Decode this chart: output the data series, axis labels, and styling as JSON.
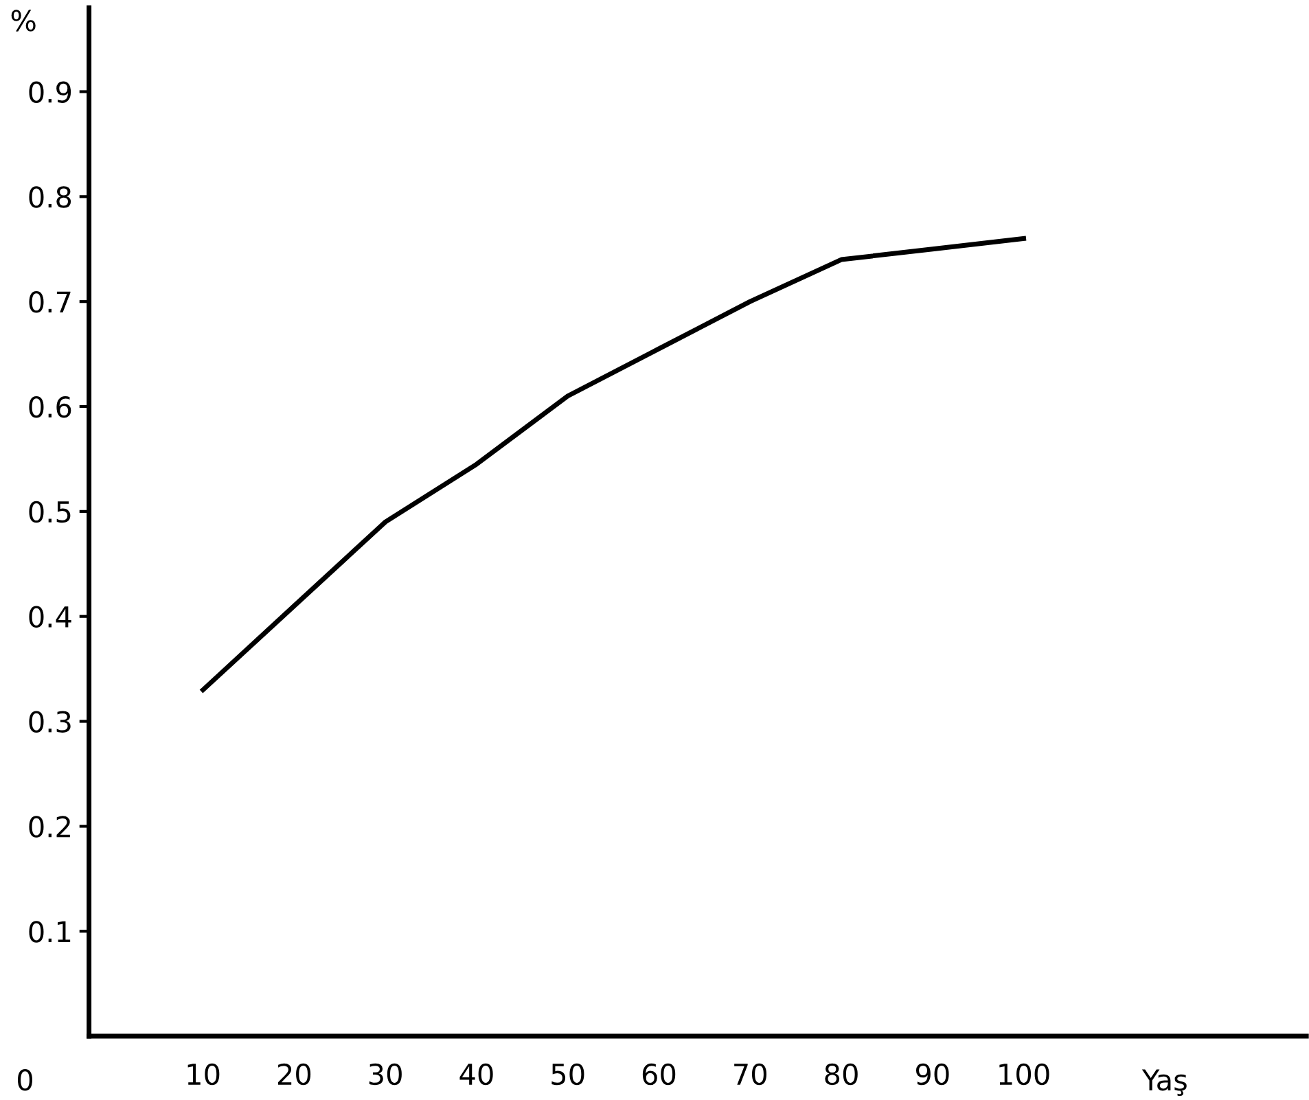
{
  "chart_data": {
    "type": "line",
    "ylabel": "%",
    "xlabel": "Yaş",
    "annotations": [
      "0"
    ],
    "x": [
      10,
      20,
      30,
      40,
      50,
      60,
      70,
      80,
      90,
      100
    ],
    "series": [
      {
        "color": "#000000",
        "values": [
          0.33,
          0.41,
          0.49,
          0.545,
          0.61,
          0.655,
          0.7,
          0.74,
          0.75,
          0.76
        ]
      }
    ],
    "xlim": [
      -2.5,
      131
    ],
    "xticks": [
      10,
      20,
      30,
      40,
      50,
      60,
      70,
      80,
      90,
      100
    ],
    "ylim": [
      0,
      0.98
    ],
    "yticks": [
      0.1,
      0.2,
      0.3,
      0.4,
      0.5,
      0.6,
      0.7,
      0.8,
      0.9
    ],
    "grid": false,
    "legend": false,
    "marker": "none",
    "line_style": "solid"
  }
}
